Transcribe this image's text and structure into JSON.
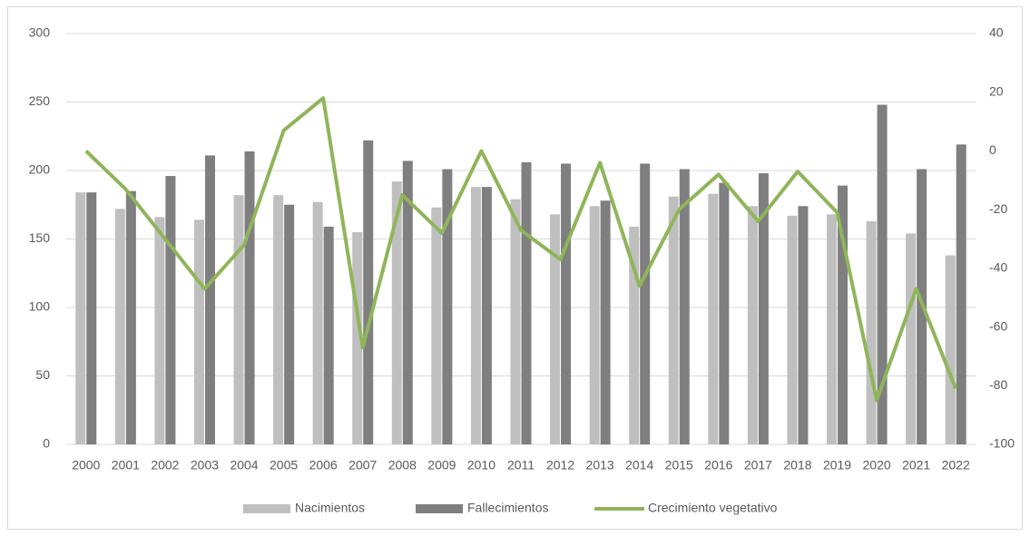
{
  "chart_data": {
    "type": "bar",
    "categories": [
      "2000",
      "2001",
      "2002",
      "2003",
      "2004",
      "2005",
      "2006",
      "2007",
      "2008",
      "2009",
      "2010",
      "2011",
      "2012",
      "2013",
      "2014",
      "2015",
      "2016",
      "2017",
      "2018",
      "2019",
      "2020",
      "2021",
      "2022"
    ],
    "series": [
      {
        "name": "Nacimientos",
        "color": "#bfbfbf",
        "type": "bar",
        "values": [
          184,
          172,
          166,
          164,
          182,
          182,
          177,
          155,
          192,
          173,
          188,
          179,
          168,
          174,
          159,
          181,
          183,
          174,
          167,
          168,
          163,
          154,
          138
        ]
      },
      {
        "name": "Fallecimientos",
        "color": "#7f7f7f",
        "type": "bar",
        "values": [
          184,
          185,
          196,
          211,
          214,
          175,
          159,
          222,
          207,
          201,
          188,
          206,
          205,
          178,
          205,
          201,
          191,
          198,
          174,
          189,
          248,
          201,
          219
        ]
      },
      {
        "name": "Crecimiento vegetativo",
        "color": "#8fb55a",
        "type": "line",
        "axis": "y2",
        "values": [
          0,
          -13,
          -30,
          -47,
          -32,
          7,
          18,
          -67,
          -15,
          -28,
          0,
          -27,
          -37,
          -4,
          -46,
          -20,
          -8,
          -24,
          -7,
          -21,
          -85,
          -47,
          -81
        ]
      }
    ],
    "ylim": [
      0,
      300
    ],
    "yticks": [
      0,
      50,
      100,
      150,
      200,
      250,
      300
    ],
    "y2lim": [
      -100,
      40
    ],
    "y2ticks": [
      -100,
      -80,
      -60,
      -40,
      -20,
      0,
      20,
      40
    ],
    "grid": true,
    "legend": "bottom"
  }
}
